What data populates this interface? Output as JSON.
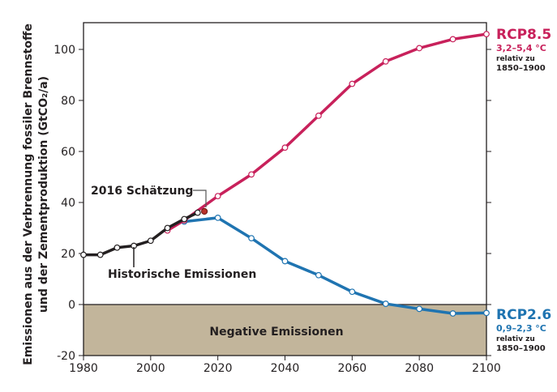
{
  "chart_data": {
    "type": "line",
    "ylabel_line1": "Emissionen aus der Verbrennung fossiler Brennstoffe",
    "ylabel_line2": "und der Zementproduktion (GtCO₂/a)",
    "xlim": [
      1980,
      2100
    ],
    "ylim": [
      -20,
      110
    ],
    "xticks": [
      1980,
      2000,
      2020,
      2040,
      2060,
      2080,
      2100
    ],
    "yticks": [
      -20,
      0,
      20,
      40,
      60,
      80,
      100
    ],
    "negative_region_label": "Negative Emissionen",
    "negative_color": "#c2b59b",
    "series": [
      {
        "name": "Historische Emissionen",
        "color": "#231f20",
        "x": [
          1980,
          1985,
          1990,
          1995,
          2000,
          2005,
          2010,
          2014
        ],
        "y": [
          19.5,
          19.5,
          22.3,
          23,
          25,
          30,
          33.5,
          36
        ]
      },
      {
        "name": "RCP8.5",
        "color": "#c8215b",
        "x": [
          2005,
          2010,
          2020,
          2030,
          2040,
          2050,
          2060,
          2070,
          2080,
          2090,
          2100
        ],
        "y": [
          29,
          33,
          42.5,
          51,
          61.5,
          74,
          86.5,
          95.3,
          100.5,
          104,
          106
        ]
      },
      {
        "name": "RCP2.6",
        "color": "#1f74b1",
        "x": [
          2010,
          2020,
          2030,
          2040,
          2050,
          2060,
          2070,
          2080,
          2090,
          2100
        ],
        "y": [
          32.5,
          34,
          26,
          17,
          11.5,
          5,
          0.3,
          -1.7,
          -3.5,
          -3.3
        ]
      }
    ],
    "estimate": {
      "label": "2016 Schätzung",
      "x": 2016,
      "y": 36.5,
      "color": "#b8322a"
    },
    "annotations": {
      "rcp85": {
        "title": "RCP8.5",
        "range": "3,2–5,4 °C",
        "note1": "relativ zu",
        "note2": "1850–1900"
      },
      "rcp26": {
        "title": "RCP2.6",
        "range": "0,9–2,3 °C",
        "note1": "relativ zu",
        "note2": "1850–1900"
      }
    }
  }
}
